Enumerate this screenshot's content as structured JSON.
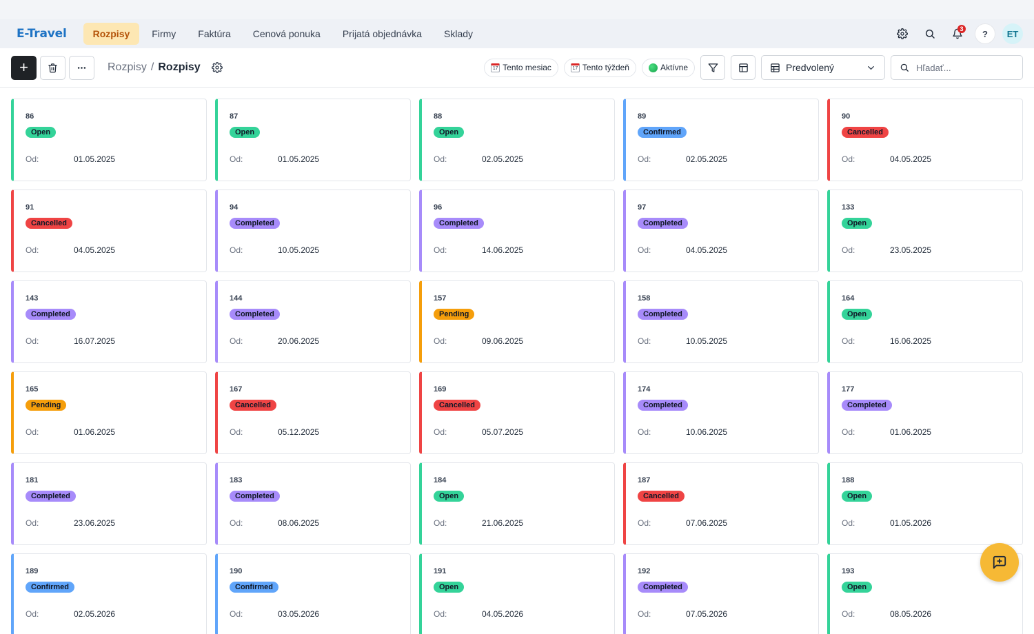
{
  "app": {
    "brand": "E-Travel"
  },
  "nav": {
    "items": [
      {
        "label": "Rozpisy",
        "active": true
      },
      {
        "label": "Firmy",
        "active": false
      },
      {
        "label": "Faktúra",
        "active": false
      },
      {
        "label": "Cenová ponuka",
        "active": false
      },
      {
        "label": "Prijatá objednávka",
        "active": false
      },
      {
        "label": "Sklady",
        "active": false
      }
    ],
    "notifications_count": "3",
    "help_label": "?",
    "avatar_initials": "ET"
  },
  "toolbar": {
    "add_label": "+",
    "breadcrumb": {
      "parent": "Rozpisy",
      "separator": "/",
      "current": "Rozpisy"
    },
    "chips": {
      "month": "Tento mesiac",
      "month_icon_text": "17",
      "week": "Tento týždeň",
      "week_icon_text": "17",
      "active": "Aktívne"
    },
    "view_select": "Predvolený",
    "search_placeholder": "Hľadať..."
  },
  "status_colors": {
    "Open": "#34d399",
    "Confirmed": "#60a5fa",
    "Cancelled": "#ef4444",
    "Completed": "#a78bfa",
    "Pending": "#f59e0b"
  },
  "cards": [
    {
      "id": "86",
      "status": "Open",
      "od_label": "Od:",
      "date": "01.05.2025"
    },
    {
      "id": "87",
      "status": "Open",
      "od_label": "Od:",
      "date": "01.05.2025"
    },
    {
      "id": "88",
      "status": "Open",
      "od_label": "Od:",
      "date": "02.05.2025"
    },
    {
      "id": "89",
      "status": "Confirmed",
      "od_label": "Od:",
      "date": "02.05.2025"
    },
    {
      "id": "90",
      "status": "Cancelled",
      "od_label": "Od:",
      "date": "04.05.2025"
    },
    {
      "id": "91",
      "status": "Cancelled",
      "od_label": "Od:",
      "date": "04.05.2025"
    },
    {
      "id": "94",
      "status": "Completed",
      "od_label": "Od:",
      "date": "10.05.2025"
    },
    {
      "id": "96",
      "status": "Completed",
      "od_label": "Od:",
      "date": "14.06.2025"
    },
    {
      "id": "97",
      "status": "Completed",
      "od_label": "Od:",
      "date": "04.05.2025"
    },
    {
      "id": "133",
      "status": "Open",
      "od_label": "Od:",
      "date": "23.05.2025"
    },
    {
      "id": "143",
      "status": "Completed",
      "od_label": "Od:",
      "date": "16.07.2025"
    },
    {
      "id": "144",
      "status": "Completed",
      "od_label": "Od:",
      "date": "20.06.2025"
    },
    {
      "id": "157",
      "status": "Pending",
      "od_label": "Od:",
      "date": "09.06.2025"
    },
    {
      "id": "158",
      "status": "Completed",
      "od_label": "Od:",
      "date": "10.05.2025"
    },
    {
      "id": "164",
      "status": "Open",
      "od_label": "Od:",
      "date": "16.06.2025"
    },
    {
      "id": "165",
      "status": "Pending",
      "od_label": "Od:",
      "date": "01.06.2025"
    },
    {
      "id": "167",
      "status": "Cancelled",
      "od_label": "Od:",
      "date": "05.12.2025"
    },
    {
      "id": "169",
      "status": "Cancelled",
      "od_label": "Od:",
      "date": "05.07.2025"
    },
    {
      "id": "174",
      "status": "Completed",
      "od_label": "Od:",
      "date": "10.06.2025"
    },
    {
      "id": "177",
      "status": "Completed",
      "od_label": "Od:",
      "date": "01.06.2025"
    },
    {
      "id": "181",
      "status": "Completed",
      "od_label": "Od:",
      "date": "23.06.2025"
    },
    {
      "id": "183",
      "status": "Completed",
      "od_label": "Od:",
      "date": "08.06.2025"
    },
    {
      "id": "184",
      "status": "Open",
      "od_label": "Od:",
      "date": "21.06.2025"
    },
    {
      "id": "187",
      "status": "Cancelled",
      "od_label": "Od:",
      "date": "07.06.2025"
    },
    {
      "id": "188",
      "status": "Open",
      "od_label": "Od:",
      "date": "01.05.2026"
    },
    {
      "id": "189",
      "status": "Confirmed",
      "od_label": "Od:",
      "date": "02.05.2026"
    },
    {
      "id": "190",
      "status": "Confirmed",
      "od_label": "Od:",
      "date": "03.05.2026"
    },
    {
      "id": "191",
      "status": "Open",
      "od_label": "Od:",
      "date": "04.05.2026"
    },
    {
      "id": "192",
      "status": "Completed",
      "od_label": "Od:",
      "date": "07.05.2026"
    },
    {
      "id": "193",
      "status": "Open",
      "od_label": "Od:",
      "date": "08.05.2026"
    }
  ],
  "icons": {
    "settings": "gear-icon",
    "search": "search-icon",
    "notifications": "bell-icon",
    "delete": "trash-icon",
    "more": "more-horizontal-icon",
    "filter": "filter-icon",
    "layout": "layout-icon",
    "table": "table-icon",
    "dropdown": "chevron-down-icon",
    "chat": "chat-plus-icon"
  }
}
